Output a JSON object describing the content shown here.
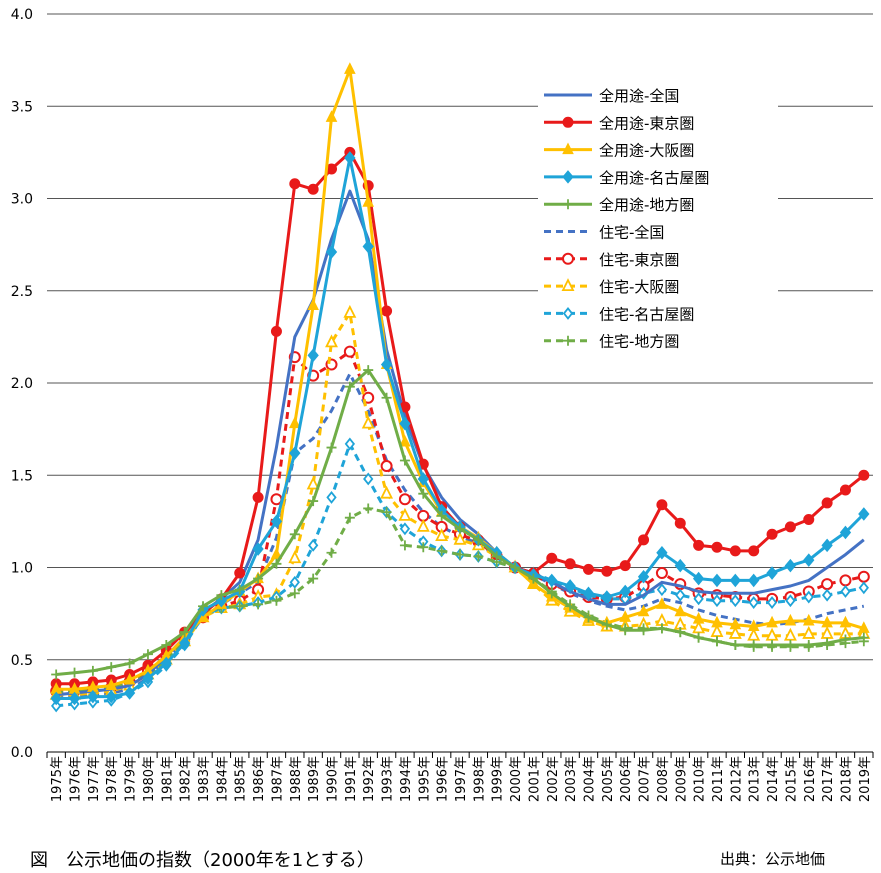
{
  "caption": "図　公示地価の指数（2000年を1とする）",
  "source": "出典：公示地価",
  "chart_data": {
    "type": "line",
    "ylim": [
      0,
      4
    ],
    "yticks": [
      "0.0",
      "0.5",
      "1.0",
      "1.5",
      "2.0",
      "2.5",
      "3.0",
      "3.5",
      "4.0"
    ],
    "grid": true,
    "legend_position": "top-right",
    "x": [
      "1975年",
      "1976年",
      "1977年",
      "1978年",
      "1979年",
      "1980年",
      "1981年",
      "1982年",
      "1983年",
      "1984年",
      "1985年",
      "1986年",
      "1987年",
      "1988年",
      "1989年",
      "1990年",
      "1991年",
      "1992年",
      "1993年",
      "1994年",
      "1995年",
      "1996年",
      "1997年",
      "1998年",
      "1999年",
      "2000年",
      "2001年",
      "2002年",
      "2003年",
      "2004年",
      "2005年",
      "2006年",
      "2007年",
      "2008年",
      "2009年",
      "2010年",
      "2011年",
      "2012年",
      "2013年",
      "2014年",
      "2015年",
      "2016年",
      "2017年",
      "2018年",
      "2019年"
    ],
    "series": [
      {
        "name": "全用途-全国",
        "color": "#4472c4",
        "dash": false,
        "marker": "none",
        "values": [
          0.31,
          0.32,
          0.33,
          0.34,
          0.36,
          0.42,
          0.52,
          0.62,
          0.76,
          0.83,
          0.92,
          1.15,
          1.65,
          2.25,
          2.45,
          2.78,
          3.04,
          2.78,
          2.18,
          1.82,
          1.55,
          1.38,
          1.26,
          1.18,
          1.08,
          1.0,
          0.97,
          0.92,
          0.87,
          0.83,
          0.8,
          0.8,
          0.85,
          0.92,
          0.9,
          0.87,
          0.86,
          0.86,
          0.86,
          0.88,
          0.9,
          0.93,
          1.0,
          1.07,
          1.15
        ]
      },
      {
        "name": "全用途-東京圏",
        "color": "#e81a1a",
        "dash": false,
        "marker": "circle-filled",
        "values": [
          0.37,
          0.37,
          0.38,
          0.39,
          0.42,
          0.47,
          0.55,
          0.65,
          0.75,
          0.83,
          0.97,
          1.38,
          2.28,
          3.08,
          3.05,
          3.16,
          3.25,
          3.07,
          2.39,
          1.87,
          1.56,
          1.33,
          1.22,
          1.15,
          1.07,
          1.0,
          0.97,
          1.05,
          1.02,
          0.99,
          0.98,
          1.01,
          1.15,
          1.34,
          1.24,
          1.12,
          1.11,
          1.09,
          1.09,
          1.18,
          1.22,
          1.26,
          1.35,
          1.42,
          1.5
        ]
      },
      {
        "name": "全用途-大阪圏",
        "color": "#ffc000",
        "dash": false,
        "marker": "triangle-filled",
        "values": [
          0.34,
          0.34,
          0.35,
          0.36,
          0.39,
          0.44,
          0.52,
          0.62,
          0.73,
          0.8,
          0.87,
          0.94,
          1.07,
          1.78,
          2.42,
          3.44,
          3.7,
          2.98,
          2.1,
          1.68,
          1.46,
          1.3,
          1.22,
          1.16,
          1.08,
          1.0,
          0.91,
          0.84,
          0.78,
          0.72,
          0.7,
          0.73,
          0.76,
          0.8,
          0.76,
          0.72,
          0.7,
          0.69,
          0.68,
          0.7,
          0.71,
          0.71,
          0.7,
          0.7,
          0.67
        ]
      },
      {
        "name": "全用途-名古屋圏",
        "color": "#1fa4d8",
        "dash": false,
        "marker": "diamond-filled",
        "values": [
          0.29,
          0.29,
          0.3,
          0.3,
          0.32,
          0.4,
          0.48,
          0.59,
          0.77,
          0.82,
          0.87,
          1.1,
          1.25,
          1.62,
          2.15,
          2.71,
          3.22,
          2.74,
          2.1,
          1.78,
          1.48,
          1.31,
          1.22,
          1.15,
          1.08,
          1.0,
          0.96,
          0.93,
          0.9,
          0.86,
          0.84,
          0.87,
          0.95,
          1.08,
          1.01,
          0.94,
          0.93,
          0.93,
          0.93,
          0.97,
          1.01,
          1.04,
          1.12,
          1.19,
          1.29
        ]
      },
      {
        "name": "全用途-地方圏",
        "color": "#70ad47",
        "dash": false,
        "marker": "plus",
        "values": [
          0.42,
          0.43,
          0.44,
          0.46,
          0.48,
          0.53,
          0.58,
          0.65,
          0.79,
          0.85,
          0.88,
          0.94,
          1.02,
          1.18,
          1.36,
          1.65,
          1.98,
          2.07,
          1.92,
          1.58,
          1.4,
          1.28,
          1.21,
          1.15,
          1.06,
          1.0,
          0.94,
          0.86,
          0.79,
          0.73,
          0.69,
          0.66,
          0.66,
          0.67,
          0.65,
          0.62,
          0.6,
          0.58,
          0.58,
          0.58,
          0.58,
          0.58,
          0.59,
          0.61,
          0.62
        ]
      },
      {
        "name": "住宅-全国",
        "color": "#4472c4",
        "dash": true,
        "marker": "none",
        "values": [
          0.3,
          0.3,
          0.31,
          0.32,
          0.34,
          0.4,
          0.5,
          0.6,
          0.73,
          0.8,
          0.86,
          0.92,
          1.16,
          1.62,
          1.7,
          1.85,
          2.05,
          1.85,
          1.58,
          1.42,
          1.3,
          1.22,
          1.17,
          1.13,
          1.06,
          1.0,
          0.96,
          0.91,
          0.86,
          0.82,
          0.79,
          0.77,
          0.79,
          0.83,
          0.81,
          0.77,
          0.74,
          0.72,
          0.7,
          0.69,
          0.7,
          0.72,
          0.75,
          0.77,
          0.79
        ]
      },
      {
        "name": "住宅-東京圏",
        "color": "#e81a1a",
        "dash": true,
        "marker": "circle-open",
        "values": [
          0.33,
          0.33,
          0.34,
          0.35,
          0.38,
          0.44,
          0.52,
          0.62,
          0.73,
          0.79,
          0.82,
          0.88,
          1.37,
          2.14,
          2.04,
          2.1,
          2.17,
          1.92,
          1.55,
          1.37,
          1.28,
          1.22,
          1.18,
          1.14,
          1.06,
          1.0,
          0.96,
          0.91,
          0.87,
          0.84,
          0.83,
          0.84,
          0.9,
          0.97,
          0.91,
          0.86,
          0.85,
          0.84,
          0.83,
          0.83,
          0.84,
          0.87,
          0.91,
          0.93,
          0.95
        ]
      },
      {
        "name": "住宅-大阪圏",
        "color": "#ffc000",
        "dash": true,
        "marker": "triangle-open",
        "values": [
          0.31,
          0.31,
          0.32,
          0.33,
          0.36,
          0.42,
          0.5,
          0.6,
          0.73,
          0.78,
          0.8,
          0.84,
          0.85,
          1.05,
          1.45,
          2.22,
          2.38,
          1.78,
          1.4,
          1.28,
          1.22,
          1.17,
          1.15,
          1.12,
          1.06,
          1.0,
          0.91,
          0.82,
          0.76,
          0.71,
          0.68,
          0.68,
          0.69,
          0.71,
          0.69,
          0.67,
          0.65,
          0.64,
          0.63,
          0.63,
          0.63,
          0.64,
          0.64,
          0.64,
          0.64
        ]
      },
      {
        "name": "住宅-名古屋圏",
        "color": "#1fa4d8",
        "dash": true,
        "marker": "diamond-open",
        "values": [
          0.25,
          0.26,
          0.27,
          0.28,
          0.32,
          0.38,
          0.47,
          0.58,
          0.74,
          0.78,
          0.79,
          0.81,
          0.84,
          0.92,
          1.12,
          1.38,
          1.67,
          1.48,
          1.3,
          1.21,
          1.14,
          1.09,
          1.07,
          1.06,
          1.03,
          1.0,
          0.97,
          0.93,
          0.89,
          0.85,
          0.83,
          0.83,
          0.86,
          0.88,
          0.85,
          0.83,
          0.82,
          0.82,
          0.81,
          0.81,
          0.82,
          0.84,
          0.85,
          0.87,
          0.89
        ]
      },
      {
        "name": "住宅-地方圏",
        "color": "#70ad47",
        "dash": true,
        "marker": "plus",
        "values": [
          0.32,
          0.33,
          0.34,
          0.35,
          0.37,
          0.42,
          0.5,
          0.6,
          0.75,
          0.78,
          0.79,
          0.8,
          0.82,
          0.86,
          0.94,
          1.08,
          1.27,
          1.32,
          1.3,
          1.12,
          1.11,
          1.09,
          1.07,
          1.06,
          1.03,
          1.0,
          0.94,
          0.87,
          0.8,
          0.74,
          0.7,
          0.67,
          0.67,
          0.67,
          0.65,
          0.62,
          0.6,
          0.58,
          0.57,
          0.57,
          0.57,
          0.57,
          0.58,
          0.59,
          0.6
        ]
      }
    ]
  }
}
